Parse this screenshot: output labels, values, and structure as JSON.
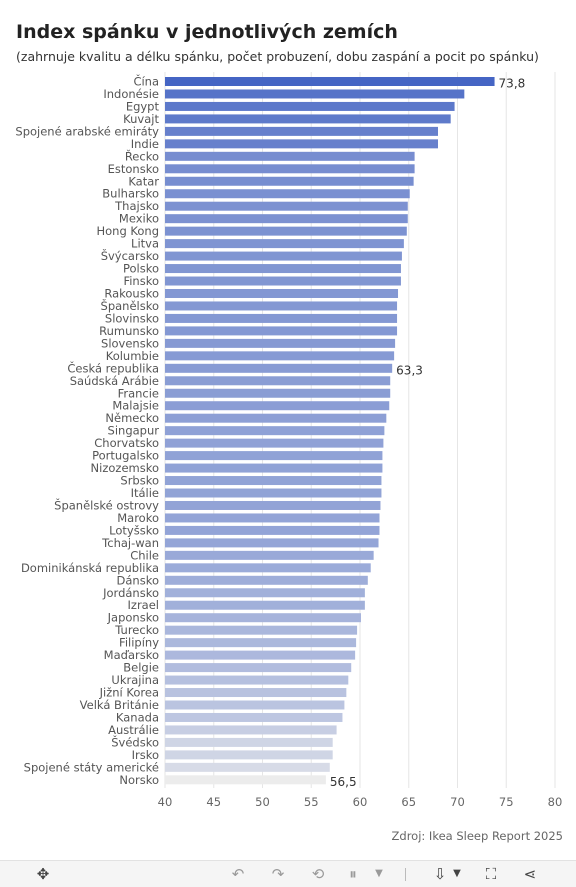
{
  "title": "Index spánku v jednotlivých zemích",
  "subtitle": "(zahrnuje kvalitu a délku spánku, počet probuzení, dobu zaspání a pocit po spánku)",
  "source": "Zdroj: Ikea Sleep Report 2025",
  "colors": {
    "bar_high": "#4565c4",
    "bar_low": "#ececec",
    "grid": "#e6e6e6"
  },
  "toolbar": {
    "icons": [
      "move-icon",
      "undo-icon",
      "redo-icon",
      "revert-icon",
      "pause-icon",
      "dropdown-icon",
      "download-icon",
      "fullscreen-icon",
      "share-icon"
    ]
  },
  "chart_data": {
    "type": "bar",
    "orientation": "horizontal",
    "categories": [
      "Čína",
      "Indonésie",
      "Egypt",
      "Kuvajt",
      "Spojené arabské emiráty",
      "Indie",
      "Řecko",
      "Estonsko",
      "Katar",
      "Bulharsko",
      "Thajsko",
      "Mexiko",
      "Hong Kong",
      "Litva",
      "Švýcarsko",
      "Polsko",
      "Finsko",
      "Rakousko",
      "Španělsko",
      "Slovinsko",
      "Rumunsko",
      "Slovensko",
      "Kolumbie",
      "Česká republika",
      "Saúdská Arábie",
      "Francie",
      "Malajsie",
      "Německo",
      "Singapur",
      "Chorvatsko",
      "Portugalsko",
      "Nizozemsko",
      "Srbsko",
      "Itálie",
      "Španělské ostrovy",
      "Maroko",
      "Lotyšsko",
      "Tchaj-wan",
      "Chile",
      "Dominikánská republika",
      "Dánsko",
      "Jordánsko",
      "Izrael",
      "Japonsko",
      "Turecko",
      "Filipíny",
      "Maďarsko",
      "Belgie",
      "Ukrajina",
      "Jižní Korea",
      "Velká Británie",
      "Kanada",
      "Austrálie",
      "Švédsko",
      "Irsko",
      "Spojené státy americké",
      "Norsko"
    ],
    "values": [
      73.8,
      70.7,
      69.7,
      69.3,
      68.0,
      68.0,
      65.6,
      65.6,
      65.5,
      65.1,
      64.9,
      64.9,
      64.8,
      64.5,
      64.3,
      64.2,
      64.2,
      63.9,
      63.8,
      63.8,
      63.8,
      63.6,
      63.5,
      63.3,
      63.1,
      63.1,
      63.0,
      62.7,
      62.5,
      62.4,
      62.3,
      62.3,
      62.2,
      62.2,
      62.1,
      62.0,
      62.0,
      61.9,
      61.4,
      61.1,
      60.8,
      60.5,
      60.5,
      60.1,
      59.7,
      59.6,
      59.5,
      59.1,
      58.8,
      58.6,
      58.4,
      58.2,
      57.6,
      57.2,
      57.2,
      56.9,
      56.5
    ],
    "data_labels": [
      {
        "category": "Čína",
        "text": "73,8"
      },
      {
        "category": "Česká republika",
        "text": "63,3"
      },
      {
        "category": "Norsko",
        "text": "56,5"
      }
    ],
    "xlim": [
      40,
      80
    ],
    "x_ticks": [
      "40",
      "45",
      "50",
      "55",
      "60",
      "65",
      "70",
      "75",
      "80"
    ],
    "grid": true,
    "xlabel": "",
    "ylabel": ""
  }
}
